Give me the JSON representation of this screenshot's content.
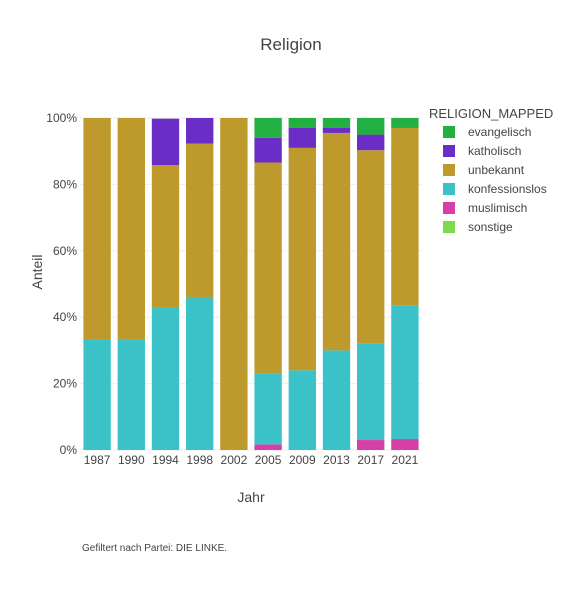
{
  "chart_data": {
    "type": "bar",
    "stacked": true,
    "normalized": true,
    "title": "Religion",
    "xlabel": "Jahr",
    "ylabel": "Anteil",
    "ylim": [
      0,
      1
    ],
    "yticks": [
      "0%",
      "20%",
      "40%",
      "60%",
      "80%",
      "100%"
    ],
    "categories": [
      "1987",
      "1990",
      "1994",
      "1998",
      "2002",
      "2005",
      "2009",
      "2013",
      "2017",
      "2021"
    ],
    "legend_title": "RELIGION_MAPPED",
    "legend_position": "right",
    "stack_order": [
      "muslimisch",
      "konfessionslos",
      "unbekannt",
      "katholisch",
      "evangelisch",
      "sonstige"
    ],
    "series": [
      {
        "name": "evangelisch",
        "color": "#22b040",
        "values": [
          0,
          0,
          0,
          0,
          0,
          0.06,
          0.03,
          0.03,
          0.05,
          0.03
        ]
      },
      {
        "name": "katholisch",
        "color": "#6a2ec6",
        "values": [
          0,
          0,
          0.14,
          0.077,
          0,
          0.074,
          0.06,
          0.015,
          0.047,
          0
        ]
      },
      {
        "name": "unbekannt",
        "color": "#be992c",
        "values": [
          0.667,
          0.667,
          0.429,
          0.462,
          1,
          0.636,
          0.67,
          0.655,
          0.583,
          0.534
        ]
      },
      {
        "name": "konfessionslos",
        "color": "#3bc2c9",
        "values": [
          0.333,
          0.333,
          0.429,
          0.461,
          0,
          0.213,
          0.24,
          0.3,
          0.29,
          0.403
        ]
      },
      {
        "name": "muslimisch",
        "color": "#d63fa8",
        "values": [
          0,
          0,
          0,
          0,
          0,
          0.017,
          0,
          0,
          0.03,
          0.033
        ]
      },
      {
        "name": "sonstige",
        "color": "#7fd94e",
        "values": [
          0,
          0,
          0,
          0,
          0,
          0,
          0,
          0,
          0,
          0
        ]
      }
    ],
    "grid": true
  },
  "footnote": "Gefiltert nach Partei: DIE LINKE."
}
